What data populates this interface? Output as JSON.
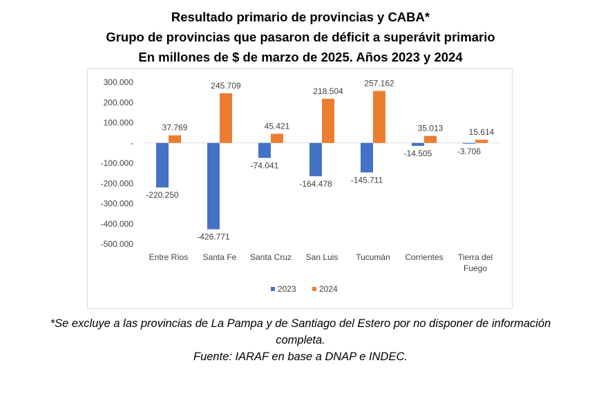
{
  "titles": [
    "Resultado primario de provincias y CABA*",
    "Grupo de provincias que pasaron de déficit a superávit primario",
    "En millones de $ de marzo de 2025. Años 2023 y 2024"
  ],
  "footnote": {
    "line1": "*Se excluye a las provincias de La Pampa y de Santiago del Estero por no disponer de información",
    "line2": "completa.",
    "source": "Fuente: IARAF en base a DNAP e INDEC."
  },
  "chart_data": {
    "type": "bar",
    "categories": [
      "Entre Ríos",
      "Santa Fe",
      "Santa Cruz",
      "San Luis",
      "Tucumán",
      "Corrientes",
      "Tierra del Fuego"
    ],
    "series": [
      {
        "name": "2023",
        "color": "#4472c4",
        "values": [
          -220250,
          -426771,
          -74041,
          -164478,
          -145711,
          -14505,
          -3706
        ],
        "labels": [
          "-220.250",
          "-426.771",
          "-74.041",
          "-164.478",
          "-145.711",
          "-14.505",
          "-3.706"
        ]
      },
      {
        "name": "2024",
        "color": "#ed7d31",
        "values": [
          37769,
          245709,
          45421,
          218504,
          257162,
          35013,
          15614
        ],
        "labels": [
          "37.769",
          "245.709",
          "45.421",
          "218.504",
          "257.162",
          "35.013",
          "15.614"
        ]
      }
    ],
    "y_ticks": [
      300000,
      200000,
      100000,
      0,
      -100000,
      -200000,
      -300000,
      -400000,
      -500000
    ],
    "y_tick_labels": [
      "300.000",
      "200.000",
      "100.000",
      "-",
      "-100.000",
      "-200.000",
      "-300.000",
      "-400.000",
      "-500.000"
    ],
    "ylim": [
      -500000,
      300000
    ],
    "legend_position": "bottom",
    "grid": false,
    "axis_color": "#d9d9d9",
    "label_color": "#404040"
  }
}
